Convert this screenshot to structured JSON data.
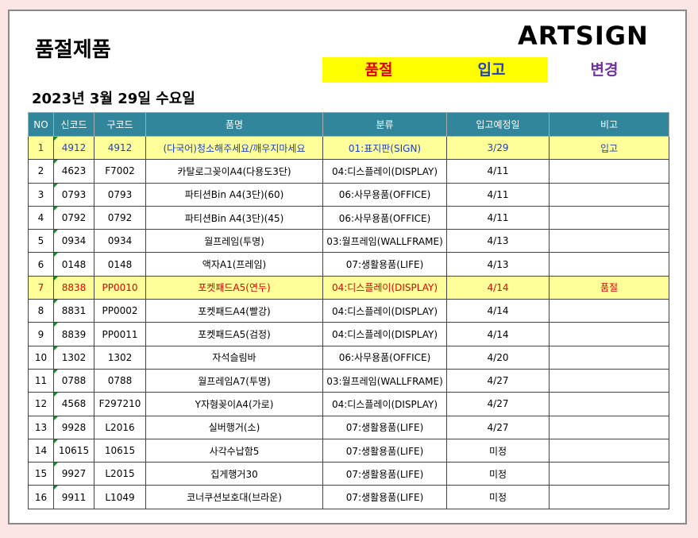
{
  "header": {
    "title": "품절제품",
    "brand": "ARTSIGN",
    "date": "2023년 3월 29일 수요일"
  },
  "legend": [
    {
      "label": "품절",
      "color": "#e00000"
    },
    {
      "label": "입고",
      "color": "#1f3fbf"
    },
    {
      "label": "변경",
      "color": "#7030a0"
    }
  ],
  "table": {
    "columns": [
      "NO",
      "신코드",
      "구코드",
      "품명",
      "분류",
      "입고예정일",
      "비고"
    ],
    "rows": [
      [
        "1",
        "4912",
        "4912",
        "(다국어)청소해주세요/깨우지마세요",
        "01:표지판(SIGN)",
        "3/29",
        "입고"
      ],
      [
        "2",
        "4623",
        "F7002",
        "카탈로그꽂이A4(다용도3단)",
        "04:디스플레이(DISPLAY)",
        "4/11",
        ""
      ],
      [
        "3",
        "0793",
        "0793",
        "파티션Bin A4(3단)(60)",
        "06:사무용품(OFFICE)",
        "4/11",
        ""
      ],
      [
        "4",
        "0792",
        "0792",
        "파티션Bin A4(3단)(45)",
        "06:사무용품(OFFICE)",
        "4/11",
        ""
      ],
      [
        "5",
        "0934",
        "0934",
        "월프레임(투명)",
        "03:월프레임(WALLFRAME)",
        "4/13",
        ""
      ],
      [
        "6",
        "0148",
        "0148",
        "액자A1(프레임)",
        "07:생활용품(LIFE)",
        "4/13",
        ""
      ],
      [
        "7",
        "8838",
        "PP0010",
        "포켓패드A5(연두)",
        "04:디스플레이(DISPLAY)",
        "4/14",
        "품절"
      ],
      [
        "8",
        "8831",
        "PP0002",
        "포켓패드A4(빨강)",
        "04:디스플레이(DISPLAY)",
        "4/14",
        ""
      ],
      [
        "9",
        "8839",
        "PP0011",
        "포켓패드A5(검정)",
        "04:디스플레이(DISPLAY)",
        "4/14",
        ""
      ],
      [
        "10",
        "1302",
        "1302",
        "자석슬림바",
        "06:사무용품(OFFICE)",
        "4/20",
        ""
      ],
      [
        "11",
        "0788",
        "0788",
        "월프레임A7(투명)",
        "03:월프레임(WALLFRAME)",
        "4/27",
        ""
      ],
      [
        "12",
        "4568",
        "F297210",
        "Y자형꽂이A4(가로)",
        "04:디스플레이(DISPLAY)",
        "4/27",
        ""
      ],
      [
        "13",
        "9928",
        "L2016",
        "실버행거(소)",
        "07:생활용품(LIFE)",
        "4/27",
        ""
      ],
      [
        "14",
        "10615",
        "10615",
        "사각수납함5",
        "07:생활용품(LIFE)",
        "미정",
        ""
      ],
      [
        "15",
        "9927",
        "L2015",
        "집게행거30",
        "07:생활용품(LIFE)",
        "미정",
        ""
      ],
      [
        "16",
        "9911",
        "L1049",
        "코너쿠션보호대(브라운)",
        "07:생활용품(LIFE)",
        "미정",
        ""
      ]
    ]
  }
}
